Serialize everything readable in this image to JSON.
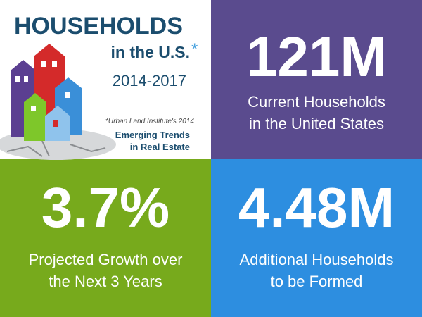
{
  "header": {
    "title": "HOUSEHOLDS",
    "subtitle": "in the U.S.",
    "asterisk": "*",
    "years": "2014-2017"
  },
  "source": {
    "note": "*Urban Land Institute's 2014",
    "lines": [
      "Emerging Trends",
      "in Real Estate"
    ]
  },
  "stats": [
    {
      "value": "121M",
      "label_lines": [
        "Current Households",
        "in the United States"
      ]
    },
    {
      "value": "3.7%",
      "label_lines": [
        "Projected Growth over",
        "the Next 3 Years"
      ]
    },
    {
      "value": "4.48M",
      "label_lines": [
        "Additional Households",
        "to be Formed"
      ]
    }
  ]
}
